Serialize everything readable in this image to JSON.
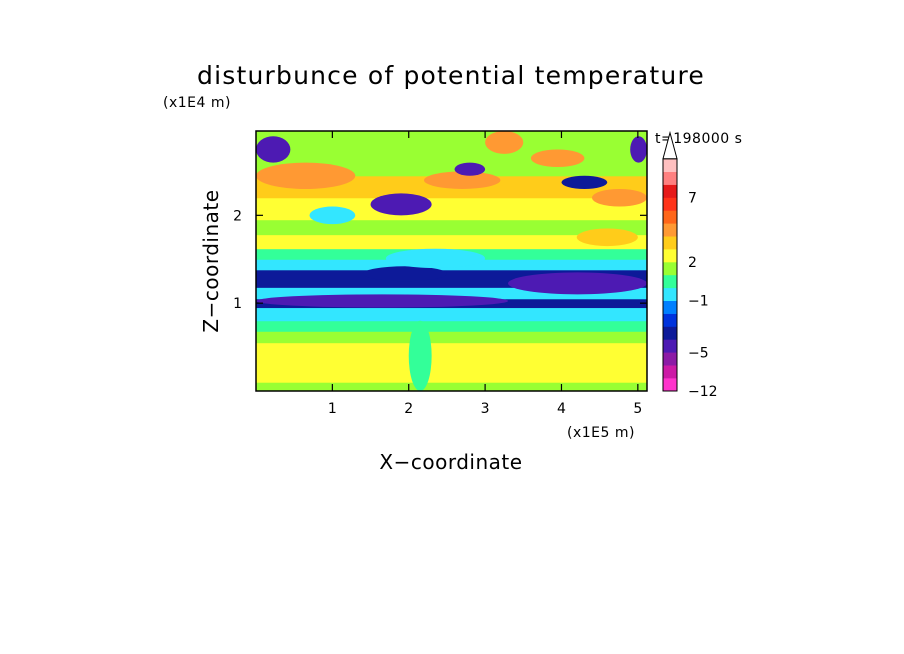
{
  "chart_data": {
    "type": "heatmap",
    "title": "disturbunce of potential temperature",
    "xlabel": "X−coordinate",
    "ylabel": "Z−coordinate",
    "x_unit": "(x1E5 m)",
    "y_unit": "(x1E4 m)",
    "time_label": "t=198000 s",
    "xlim": [
      0,
      5.12
    ],
    "ylim": [
      0,
      2.96
    ],
    "x_ticks": [
      "1",
      "2",
      "3",
      "4",
      "5"
    ],
    "y_ticks": [
      "1",
      "2"
    ],
    "x_tick_values": [
      1,
      2,
      3,
      4,
      5
    ],
    "y_tick_values": [
      1,
      2
    ],
    "colorbar": {
      "levels": [
        -12,
        -9,
        -7,
        -5,
        -4,
        -3,
        -2,
        -1,
        0,
        1,
        2,
        3,
        4,
        5,
        6,
        7,
        8,
        9,
        12
      ],
      "colors": [
        "#ff33cc",
        "#cc1aa6",
        "#8c1aa6",
        "#4d1ab3",
        "#0d1a99",
        "#0033dd",
        "#0080ff",
        "#33e6ff",
        "#33ff99",
        "#99ff33",
        "#ffff33",
        "#ffcc1a",
        "#ff9933",
        "#ff6619",
        "#ff3319",
        "#e61a1a",
        "#ff8080",
        "#ffc0c0"
      ],
      "labels": [
        "7",
        "2",
        "−1",
        "−5",
        "−12"
      ],
      "label_values": [
        7,
        2,
        -1,
        -5,
        -12
      ],
      "extend": "max"
    },
    "bands": [
      {
        "z": [
          0.0,
          0.1
        ],
        "value": 1.5
      },
      {
        "z": [
          0.1,
          0.55
        ],
        "value": 2.5
      },
      {
        "z": [
          0.55,
          0.68
        ],
        "value": 1.6
      },
      {
        "z": [
          0.68,
          0.8
        ],
        "value": 0.5
      },
      {
        "z": [
          0.8,
          0.95
        ],
        "value": -0.5
      },
      {
        "z": [
          0.95,
          1.05
        ],
        "value": -3.5
      },
      {
        "z": [
          1.05,
          1.18
        ],
        "value": -0.5
      },
      {
        "z": [
          1.18,
          1.38
        ],
        "value": -4.0
      },
      {
        "z": [
          1.38,
          1.5
        ],
        "value": -0.5
      },
      {
        "z": [
          1.5,
          1.62
        ],
        "value": 0.5
      },
      {
        "z": [
          1.62,
          1.78
        ],
        "value": 2.0
      },
      {
        "z": [
          1.78,
          1.95
        ],
        "value": 1.0
      },
      {
        "z": [
          1.95,
          2.2
        ],
        "value": 2.0
      },
      {
        "z": [
          2.2,
          2.45
        ],
        "value": 3.5
      },
      {
        "z": [
          2.45,
          2.96
        ],
        "value": 1.5
      }
    ],
    "features": [
      {
        "x": [
          0.0,
          3.3
        ],
        "z": [
          0.95,
          1.1
        ],
        "value": -4.5
      },
      {
        "x": [
          3.3,
          5.12
        ],
        "z": [
          1.1,
          1.35
        ],
        "value": -4.5
      },
      {
        "x": [
          1.4,
          2.5
        ],
        "z": [
          1.25,
          1.42
        ],
        "value": -4.0
      },
      {
        "x": [
          1.7,
          3.0
        ],
        "z": [
          1.4,
          1.62
        ],
        "value": -0.5
      },
      {
        "x": [
          0.0,
          1.3
        ],
        "z": [
          2.3,
          2.6
        ],
        "value": 4.0
      },
      {
        "x": [
          0.7,
          1.3
        ],
        "z": [
          1.9,
          2.1
        ],
        "value": -0.5
      },
      {
        "x": [
          1.5,
          2.3
        ],
        "z": [
          2.0,
          2.25
        ],
        "value": -4.5
      },
      {
        "x": [
          2.2,
          3.2
        ],
        "z": [
          2.3,
          2.5
        ],
        "value": 4.5
      },
      {
        "x": [
          2.6,
          3.0
        ],
        "z": [
          2.45,
          2.6
        ],
        "value": -4.5
      },
      {
        "x": [
          3.6,
          4.3
        ],
        "z": [
          2.55,
          2.75
        ],
        "value": 4.0
      },
      {
        "x": [
          4.0,
          4.6
        ],
        "z": [
          2.3,
          2.45
        ],
        "value": -4.0
      },
      {
        "x": [
          4.2,
          5.0
        ],
        "z": [
          1.65,
          1.85
        ],
        "value": 3.5
      },
      {
        "x": [
          4.4,
          5.12
        ],
        "z": [
          2.1,
          2.3
        ],
        "value": 4.5
      },
      {
        "x": [
          4.9,
          5.12
        ],
        "z": [
          2.6,
          2.9
        ],
        "value": -4.5
      },
      {
        "x": [
          0.0,
          0.45
        ],
        "z": [
          2.6,
          2.9
        ],
        "value": -4.5
      },
      {
        "x": [
          2.0,
          2.3
        ],
        "z": [
          0.0,
          0.8
        ],
        "value": 0.5
      },
      {
        "x": [
          3.0,
          3.5
        ],
        "z": [
          2.7,
          2.96
        ],
        "value": 4.0
      }
    ]
  }
}
